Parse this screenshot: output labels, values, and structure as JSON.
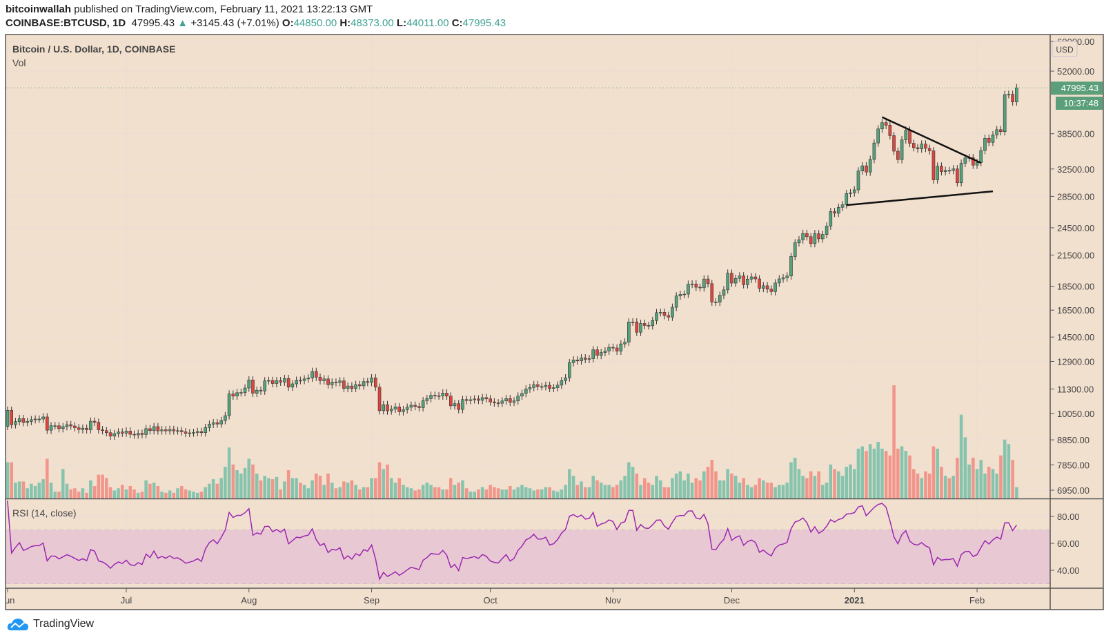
{
  "header": {
    "author": "bitcoinwallah",
    "published": "published on TradingView.com, February 11, 2021 13:22:13 GMT",
    "symbol": "COINBASE:BTCUSD, 1D",
    "last": "47995.43",
    "change": "+3145.43 (+7.01%)",
    "o_label": "O:",
    "o": "44850.00",
    "h_label": "H:",
    "h": "48373.00",
    "l_label": "L:",
    "l": "44011.00",
    "c_label": "C:",
    "c": "47995.43"
  },
  "pane": {
    "title": "Bitcoin / U.S. Dollar, 1D, COINBASE",
    "vol_label": "Vol",
    "rsi_label": "RSI (14, close)",
    "currency": "USD",
    "price_tag": "47995.43",
    "countdown": "10:37:48"
  },
  "footer": {
    "brand": "TradingView"
  },
  "colors": {
    "background": "#f2e0cf",
    "up": "#53a27a",
    "down": "#e0453d",
    "vol_up": "#86c4ae",
    "vol_down": "#f2968b",
    "rsi": "#9c27b0",
    "rsi_band": "#e8c9d3",
    "price_tag": "#5b9f7a",
    "accent": "#3fa394"
  },
  "chart_data": {
    "type": "candlestick",
    "scale": "log",
    "start_date": "2020-06-01",
    "first_open": 9440,
    "ylim": [
      6650,
      62000
    ],
    "y_ticks": [
      60000,
      52000,
      38500,
      32500,
      28500,
      24500,
      21500,
      18500,
      16500,
      14500,
      12900,
      11300,
      10050,
      8850,
      7850,
      6950
    ],
    "y_tick_labels": [
      "60000.00",
      "52000.00",
      "38500.00",
      "32500.00",
      "28500.00",
      "24500.00",
      "21500.00",
      "18500.00",
      "16500.00",
      "14500.00",
      "12900.00",
      "11300.00",
      "10050.00",
      "8850.00",
      "7850.00",
      "6950.00"
    ],
    "x_ticks": [
      {
        "date": "2020-06-01",
        "label": "Jun"
      },
      {
        "date": "2020-07-01",
        "label": "Jul"
      },
      {
        "date": "2020-08-01",
        "label": "Aug"
      },
      {
        "date": "2020-09-01",
        "label": "Sep"
      },
      {
        "date": "2020-10-01",
        "label": "Oct"
      },
      {
        "date": "2020-11-01",
        "label": "Nov"
      },
      {
        "date": "2020-12-01",
        "label": "Dec"
      },
      {
        "date": "2021-01-01",
        "label": "2021"
      },
      {
        "date": "2021-02-01",
        "label": "Feb"
      }
    ],
    "close": [
      10200,
      9520,
      9660,
      9800,
      9620,
      9670,
      9750,
      9780,
      9780,
      9880,
      9270,
      9470,
      9470,
      9340,
      9430,
      9520,
      9460,
      9380,
      9300,
      9360,
      9290,
      9680,
      9630,
      9290,
      9250,
      9160,
      9010,
      9120,
      9190,
      9140,
      9230,
      9090,
      9060,
      9130,
      9080,
      9340,
      9250,
      9430,
      9240,
      9290,
      9240,
      9300,
      9240,
      9250,
      9200,
      9130,
      9150,
      9170,
      9210,
      9160,
      9390,
      9540,
      9610,
      9550,
      9710,
      9940,
      11030,
      10920,
      11100,
      11110,
      11350,
      11800,
      11070,
      11230,
      11190,
      11750,
      11770,
      11600,
      11760,
      11680,
      11880,
      11400,
      11580,
      11780,
      11770,
      11860,
      11910,
      12290,
      11960,
      11760,
      11860,
      11530,
      11680,
      11650,
      11750,
      11330,
      11460,
      11330,
      11540,
      11470,
      11710,
      11660,
      11920,
      11400,
      10180,
      10480,
      10170,
      10260,
      10370,
      10130,
      10230,
      10350,
      10450,
      10390,
      10330,
      10680,
      10790,
      10960,
      10940,
      10930,
      11080,
      10920,
      10420,
      10530,
      10240,
      10740,
      10690,
      10730,
      10770,
      10700,
      10840,
      10780,
      10620,
      10570,
      10550,
      10670,
      10790,
      10600,
      10670,
      10920,
      11060,
      11300,
      11380,
      11540,
      11430,
      11430,
      11500,
      11330,
      11370,
      11510,
      11760,
      11920,
      12820,
      12990,
      12930,
      13120,
      13030,
      13070,
      13640,
      13280,
      13460,
      13560,
      13800,
      13760,
      13550,
      14030,
      14150,
      15590,
      15590,
      14840,
      15480,
      15330,
      15310,
      15700,
      16300,
      16330,
      16080,
      15960,
      16730,
      17660,
      17790,
      17820,
      18680,
      18710,
      18420,
      18370,
      19160,
      18740,
      17160,
      17140,
      17720,
      18190,
      19700,
      18790,
      19220,
      19450,
      18650,
      19150,
      19360,
      19170,
      18320,
      18550,
      18250,
      18040,
      18800,
      19170,
      19270,
      19440,
      21350,
      22800,
      23130,
      23840,
      23480,
      22720,
      23820,
      23240,
      23730,
      24710,
      26490,
      26280,
      27040,
      27370,
      28880,
      28990,
      29400,
      32200,
      33000,
      32030,
      34030,
      36820,
      39400,
      40600,
      40100,
      38150,
      35400,
      34000,
      37390,
      39150,
      36770,
      36000,
      35800,
      36630,
      35890,
      35470,
      30850,
      32950,
      32090,
      32280,
      32270,
      32520,
      30420,
      33400,
      34270,
      34320,
      33110,
      33520,
      35520,
      37660,
      36930,
      38290,
      39260,
      38880,
      46450,
      46510,
      44850,
      47995.43
    ],
    "volume_relative": [
      32,
      32,
      14,
      15,
      15,
      9,
      13,
      11,
      14,
      17,
      35,
      14,
      6,
      6,
      26,
      13,
      8,
      9,
      6,
      9,
      5,
      16,
      11,
      21,
      21,
      18,
      10,
      7,
      9,
      12,
      8,
      11,
      8,
      5,
      6,
      16,
      13,
      14,
      11,
      6,
      5,
      7,
      5,
      9,
      11,
      8,
      7,
      6,
      5,
      6,
      10,
      13,
      17,
      13,
      18,
      28,
      45,
      30,
      25,
      22,
      27,
      35,
      30,
      22,
      16,
      20,
      18,
      17,
      19,
      8,
      15,
      25,
      18,
      18,
      14,
      12,
      9,
      16,
      22,
      20,
      12,
      22,
      14,
      9,
      10,
      15,
      14,
      16,
      12,
      8,
      10,
      10,
      18,
      18,
      32,
      26,
      30,
      18,
      14,
      18,
      12,
      10,
      9,
      7,
      8,
      12,
      14,
      12,
      10,
      10,
      8,
      8,
      18,
      12,
      14,
      16,
      9,
      6,
      6,
      8,
      10,
      8,
      12,
      10,
      9,
      8,
      8,
      11,
      8,
      10,
      12,
      10,
      9,
      7,
      8,
      8,
      10,
      10,
      7,
      6,
      8,
      12,
      26,
      20,
      12,
      15,
      10,
      10,
      20,
      16,
      14,
      12,
      12,
      10,
      12,
      16,
      20,
      32,
      28,
      22,
      12,
      18,
      14,
      12,
      20,
      16,
      10,
      10,
      18,
      22,
      24,
      16,
      22,
      14,
      18,
      16,
      24,
      28,
      34,
      24,
      16,
      16,
      26,
      22,
      20,
      14,
      18,
      12,
      10,
      12,
      18,
      16,
      14,
      14,
      10,
      12,
      12,
      14,
      32,
      36,
      26,
      20,
      18,
      24,
      20,
      24,
      12,
      14,
      30,
      26,
      24,
      20,
      28,
      30,
      26,
      44,
      46,
      42,
      48,
      44,
      50,
      44,
      42,
      38,
      100,
      44,
      46,
      42,
      38,
      26,
      22,
      18,
      24,
      22,
      46,
      44,
      28,
      20,
      18,
      20,
      36,
      74,
      54,
      30,
      36,
      26,
      34,
      22,
      28,
      26,
      22,
      38,
      52,
      48,
      34,
      10
    ],
    "rsi": {
      "period": 14,
      "source": "close",
      "levels": [
        70,
        30
      ],
      "ylim": [
        28,
        92
      ],
      "y_ticks": [
        80,
        60,
        40
      ],
      "y_tick_labels": [
        "80.00",
        "60.00",
        "40.00"
      ]
    },
    "trendlines": [
      {
        "from": [
          "2021-01-08",
          41700
        ],
        "to": [
          "2021-02-02",
          33460
        ]
      },
      {
        "from": [
          "2020-12-30",
          27320
        ],
        "to": [
          "2021-02-05",
          29200
        ]
      }
    ]
  }
}
